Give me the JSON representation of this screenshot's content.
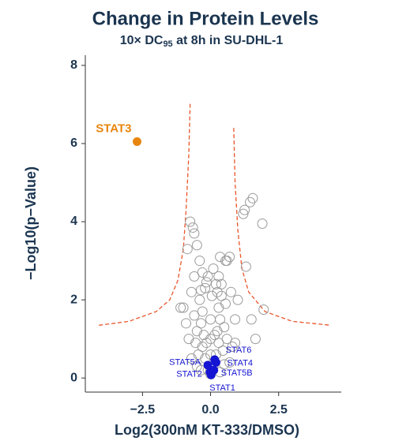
{
  "chart_data": {
    "type": "volcano",
    "title": "Change in Protein Levels",
    "subtitle": [
      "10× DC",
      "95",
      " at 8h in SU-DHL-1"
    ],
    "x_label": "Log2(300nM KT-333/DMSO)",
    "y_label": "−Log10(p−Value)",
    "xlim": [
      -4.6,
      4.8
    ],
    "ylim": [
      -0.36,
      8.26
    ],
    "xticks": [
      {
        "value": -2.5,
        "label": "−2.5"
      },
      {
        "value": 0,
        "label": "0.0"
      },
      {
        "value": 2.5,
        "label": "2.5"
      }
    ],
    "yticks": [
      0,
      2,
      4,
      6,
      8
    ],
    "points": {
      "color": "#9a9a9a",
      "x": [
        0,
        -0.1,
        0.1,
        -0.2,
        0.2,
        -0.3,
        0.3,
        -0.25,
        0.25,
        -0.35,
        0.35,
        -0.3,
        0.3,
        -0.4,
        0.4,
        -0.2,
        0.2,
        0,
        0,
        0,
        -0.15,
        0.15,
        -0.45,
        0.45,
        -0.5,
        0.5,
        -0.55,
        0.6,
        -0.6,
        0.55,
        -0.1,
        0.1,
        -0.3,
        0.3,
        -0.4,
        0.35,
        -0.5,
        0.55,
        0.6,
        0.7,
        -0.6,
        -0.65,
        -0.75,
        0.25,
        -0.7,
        0.75,
        -0.8,
        0.8,
        -0.9,
        0.9,
        -1.0,
        1.0,
        -0.7,
        0.7,
        -0.35,
        0.35,
        -0.5,
        0.5,
        1.55,
        1.45,
        1.25,
        1.2,
        1.9,
        1.3,
        1.95,
        1.5,
        -0.85,
        -0.6,
        -1.1,
        1.65,
        0.9,
        -0.35,
        0.4,
        -0.15,
        0.05
      ],
      "y": [
        0.1,
        0.2,
        0.3,
        0.5,
        0.6,
        0.8,
        0.9,
        1.1,
        1.2,
        1.4,
        1.5,
        1.7,
        1.8,
        2.0,
        2.1,
        2.3,
        2.4,
        1.0,
        1.5,
        0.6,
        0.9,
        1.1,
        0.6,
        0.7,
        1.2,
        1.3,
        0.9,
        1.0,
        1.6,
        1.9,
        2.6,
        2.8,
        2.7,
        2.6,
        3.0,
        3.1,
        3.4,
        3.0,
        3.0,
        3.1,
        3.7,
        3.85,
        4.0,
        2.2,
        2.2,
        2.2,
        1.0,
        0.8,
        1.4,
        1.5,
        1.8,
        2.0,
        0.5,
        0.4,
        0.2,
        0.15,
        0.3,
        0.35,
        4.6,
        4.5,
        4.3,
        4.2,
        3.95,
        2.85,
        1.75,
        1.5,
        3.3,
        2.6,
        1.8,
        1.0,
        0.9,
        2.25,
        2.4,
        2.45,
        2.1
      ]
    },
    "thresholds": {
      "color": "#e8552a",
      "series": [
        {
          "x": [
            -4.1,
            -3,
            -2,
            -1.5,
            -1.2,
            -1.0,
            -0.9,
            -0.8,
            -0.75
          ],
          "y": [
            1.35,
            1.45,
            1.7,
            2.0,
            2.5,
            3.3,
            4.3,
            5.7,
            7.05
          ]
        },
        {
          "x": [
            0.85,
            0.9,
            1.0,
            1.15,
            1.4,
            2,
            3,
            4.4
          ],
          "y": [
            6.4,
            5.0,
            3.8,
            2.8,
            2.2,
            1.7,
            1.45,
            1.35
          ]
        }
      ]
    },
    "highlights": [
      {
        "label": "STAT3",
        "x": -2.7,
        "y": 6.05,
        "color": "#e8850f"
      },
      {
        "label": "STAT6",
        "x": 0.15,
        "y": 0.47,
        "color": "#1414d2"
      },
      {
        "label": "STAT4",
        "x": 0.2,
        "y": 0.4,
        "color": "#1414d2"
      },
      {
        "label": "STAT5A",
        "x": -0.1,
        "y": 0.33,
        "color": "#1414d2"
      },
      {
        "label": "STAT2",
        "x": -0.02,
        "y": 0.15,
        "color": "#1414d2"
      },
      {
        "label": "STAT5B",
        "x": 0.12,
        "y": 0.2,
        "color": "#1414d2"
      },
      {
        "label": "STAT1",
        "x": 0.02,
        "y": 0.08,
        "color": "#1414d2"
      }
    ]
  }
}
